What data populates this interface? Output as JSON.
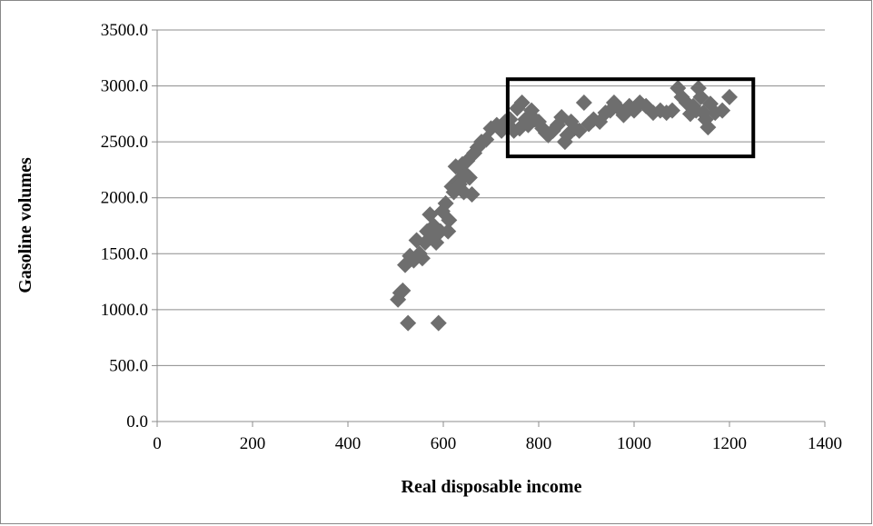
{
  "chart_data": {
    "type": "scatter",
    "title": "",
    "xlabel": "Real disposable income",
    "ylabel": "Gasoline volumes",
    "xlim": [
      0,
      1400
    ],
    "ylim": [
      0,
      3500
    ],
    "x_ticks": [
      "0",
      "200",
      "400",
      "600",
      "800",
      "1000",
      "1200",
      "1400"
    ],
    "y_ticks": [
      "0.0",
      "500.0",
      "1000.0",
      "1500.0",
      "2000.0",
      "2500.0",
      "3000.0",
      "3500.0"
    ],
    "grid": "horizontal",
    "legend": "none",
    "marker_color": "#6e6e6e",
    "highlight_box": {
      "x": [
        735,
        1250
      ],
      "y": [
        2370,
        3060
      ]
    },
    "series": [
      {
        "points": [
          [
            505,
            1090
          ],
          [
            510,
            1150
          ],
          [
            515,
            1170
          ],
          [
            520,
            1400
          ],
          [
            526,
            880
          ],
          [
            530,
            1480
          ],
          [
            538,
            1440
          ],
          [
            544,
            1620
          ],
          [
            550,
            1500
          ],
          [
            556,
            1460
          ],
          [
            562,
            1600
          ],
          [
            566,
            1700
          ],
          [
            572,
            1850
          ],
          [
            576,
            1660
          ],
          [
            580,
            1750
          ],
          [
            585,
            1600
          ],
          [
            590,
            880
          ],
          [
            594,
            1700
          ],
          [
            598,
            1880
          ],
          [
            605,
            1950
          ],
          [
            610,
            1700
          ],
          [
            612,
            1800
          ],
          [
            618,
            2100
          ],
          [
            622,
            2050
          ],
          [
            626,
            2280
          ],
          [
            630,
            2150
          ],
          [
            634,
            2120
          ],
          [
            638,
            2250
          ],
          [
            640,
            2300
          ],
          [
            643,
            2050
          ],
          [
            646,
            2200
          ],
          [
            650,
            2330
          ],
          [
            655,
            2180
          ],
          [
            660,
            2030
          ],
          [
            665,
            2400
          ],
          [
            672,
            2450
          ],
          [
            680,
            2500
          ],
          [
            690,
            2520
          ],
          [
            700,
            2620
          ],
          [
            712,
            2650
          ],
          [
            722,
            2600
          ],
          [
            730,
            2680
          ],
          [
            740,
            2700
          ],
          [
            748,
            2600
          ],
          [
            755,
            2800
          ],
          [
            760,
            2620
          ],
          [
            765,
            2850
          ],
          [
            772,
            2700
          ],
          [
            778,
            2650
          ],
          [
            785,
            2780
          ],
          [
            792,
            2700
          ],
          [
            800,
            2680
          ],
          [
            808,
            2620
          ],
          [
            815,
            2580
          ],
          [
            820,
            2560
          ],
          [
            830,
            2600
          ],
          [
            840,
            2650
          ],
          [
            848,
            2720
          ],
          [
            855,
            2500
          ],
          [
            860,
            2560
          ],
          [
            868,
            2680
          ],
          [
            875,
            2620
          ],
          [
            885,
            2600
          ],
          [
            895,
            2850
          ],
          [
            905,
            2660
          ],
          [
            915,
            2700
          ],
          [
            928,
            2680
          ],
          [
            940,
            2760
          ],
          [
            950,
            2780
          ],
          [
            958,
            2850
          ],
          [
            968,
            2800
          ],
          [
            978,
            2740
          ],
          [
            990,
            2820
          ],
          [
            1000,
            2780
          ],
          [
            1012,
            2850
          ],
          [
            1025,
            2820
          ],
          [
            1040,
            2760
          ],
          [
            1055,
            2780
          ],
          [
            1068,
            2760
          ],
          [
            1080,
            2780
          ],
          [
            1092,
            2980
          ],
          [
            1100,
            2900
          ],
          [
            1110,
            2850
          ],
          [
            1118,
            2750
          ],
          [
            1124,
            2820
          ],
          [
            1130,
            2780
          ],
          [
            1135,
            2980
          ],
          [
            1140,
            2900
          ],
          [
            1145,
            2760
          ],
          [
            1150,
            2700
          ],
          [
            1155,
            2630
          ],
          [
            1160,
            2840
          ],
          [
            1170,
            2760
          ],
          [
            1185,
            2780
          ],
          [
            1200,
            2900
          ]
        ]
      }
    ]
  }
}
